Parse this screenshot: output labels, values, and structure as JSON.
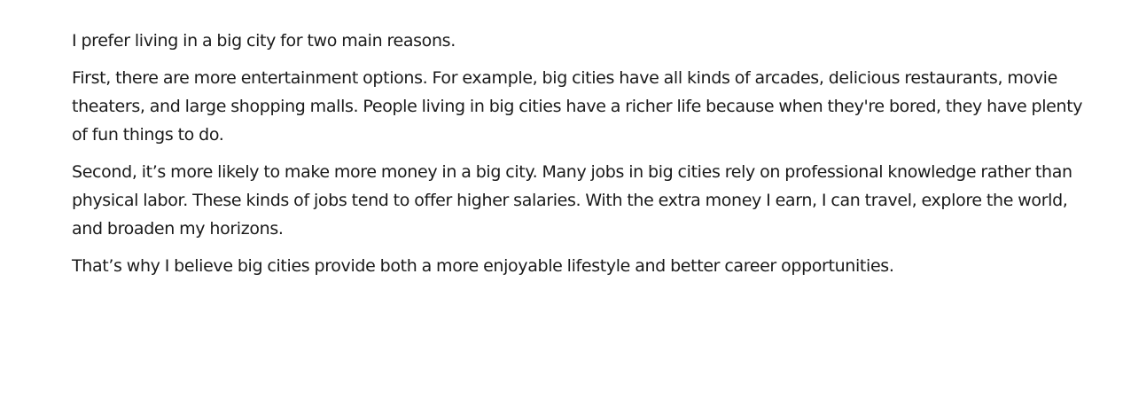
{
  "essay": {
    "paragraphs": [
      "I prefer living in a big city for two main reasons.",
      "First, there are more entertainment options. For example, big cities have all kinds of arcades, delicious restaurants, movie theaters, and large shopping malls. People living in big cities have a richer life because when they're bored, they have plenty of fun things to do.",
      "Second, it’s more likely to make more money in a big city. Many jobs in big cities rely on professional knowledge rather than physical labor. These kinds of jobs tend to offer higher salaries. With the extra money I earn, I can travel, explore the world, and broaden my horizons.",
      "That’s why I believe big cities provide both a more enjoyable lifestyle and better career opportunities."
    ]
  }
}
